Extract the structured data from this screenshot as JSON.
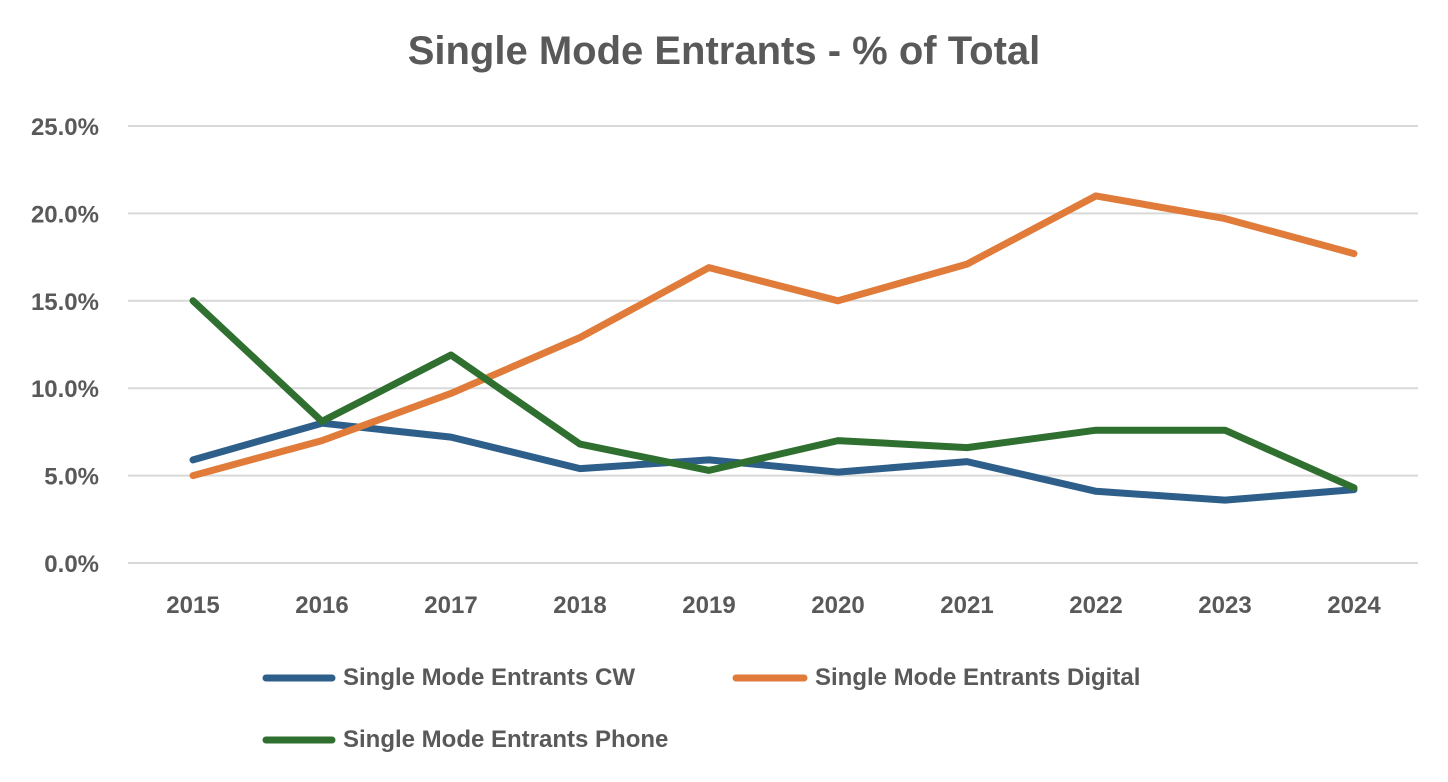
{
  "chart_data": {
    "type": "line",
    "title": "Single Mode Entrants - % of Total",
    "xlabel": "",
    "ylabel": "",
    "categories": [
      "2015",
      "2016",
      "2017",
      "2018",
      "2019",
      "2020",
      "2021",
      "2022",
      "2023",
      "2024"
    ],
    "ylim": [
      0,
      25
    ],
    "y_ticks": [
      0,
      5,
      10,
      15,
      20,
      25
    ],
    "y_tick_labels": [
      "0.0%",
      "5.0%",
      "10.0%",
      "15.0%",
      "20.0%",
      "25.0%"
    ],
    "grid": true,
    "legend_position": "bottom",
    "series": [
      {
        "name": "Single Mode Entrants CW",
        "color": "#2e5f8a",
        "values": [
          5.9,
          8.0,
          7.2,
          5.4,
          5.9,
          5.2,
          5.8,
          4.1,
          3.6,
          4.2
        ]
      },
      {
        "name": "Single Mode Entrants Digital",
        "color": "#e07b39",
        "values": [
          5.0,
          7.0,
          9.7,
          12.9,
          16.9,
          15.0,
          17.1,
          21.0,
          19.7,
          17.7
        ]
      },
      {
        "name": "Single Mode Entrants Phone",
        "color": "#2f6f2f",
        "values": [
          15.0,
          8.1,
          11.9,
          6.8,
          5.3,
          7.0,
          6.6,
          7.6,
          7.6,
          4.3
        ]
      }
    ]
  }
}
